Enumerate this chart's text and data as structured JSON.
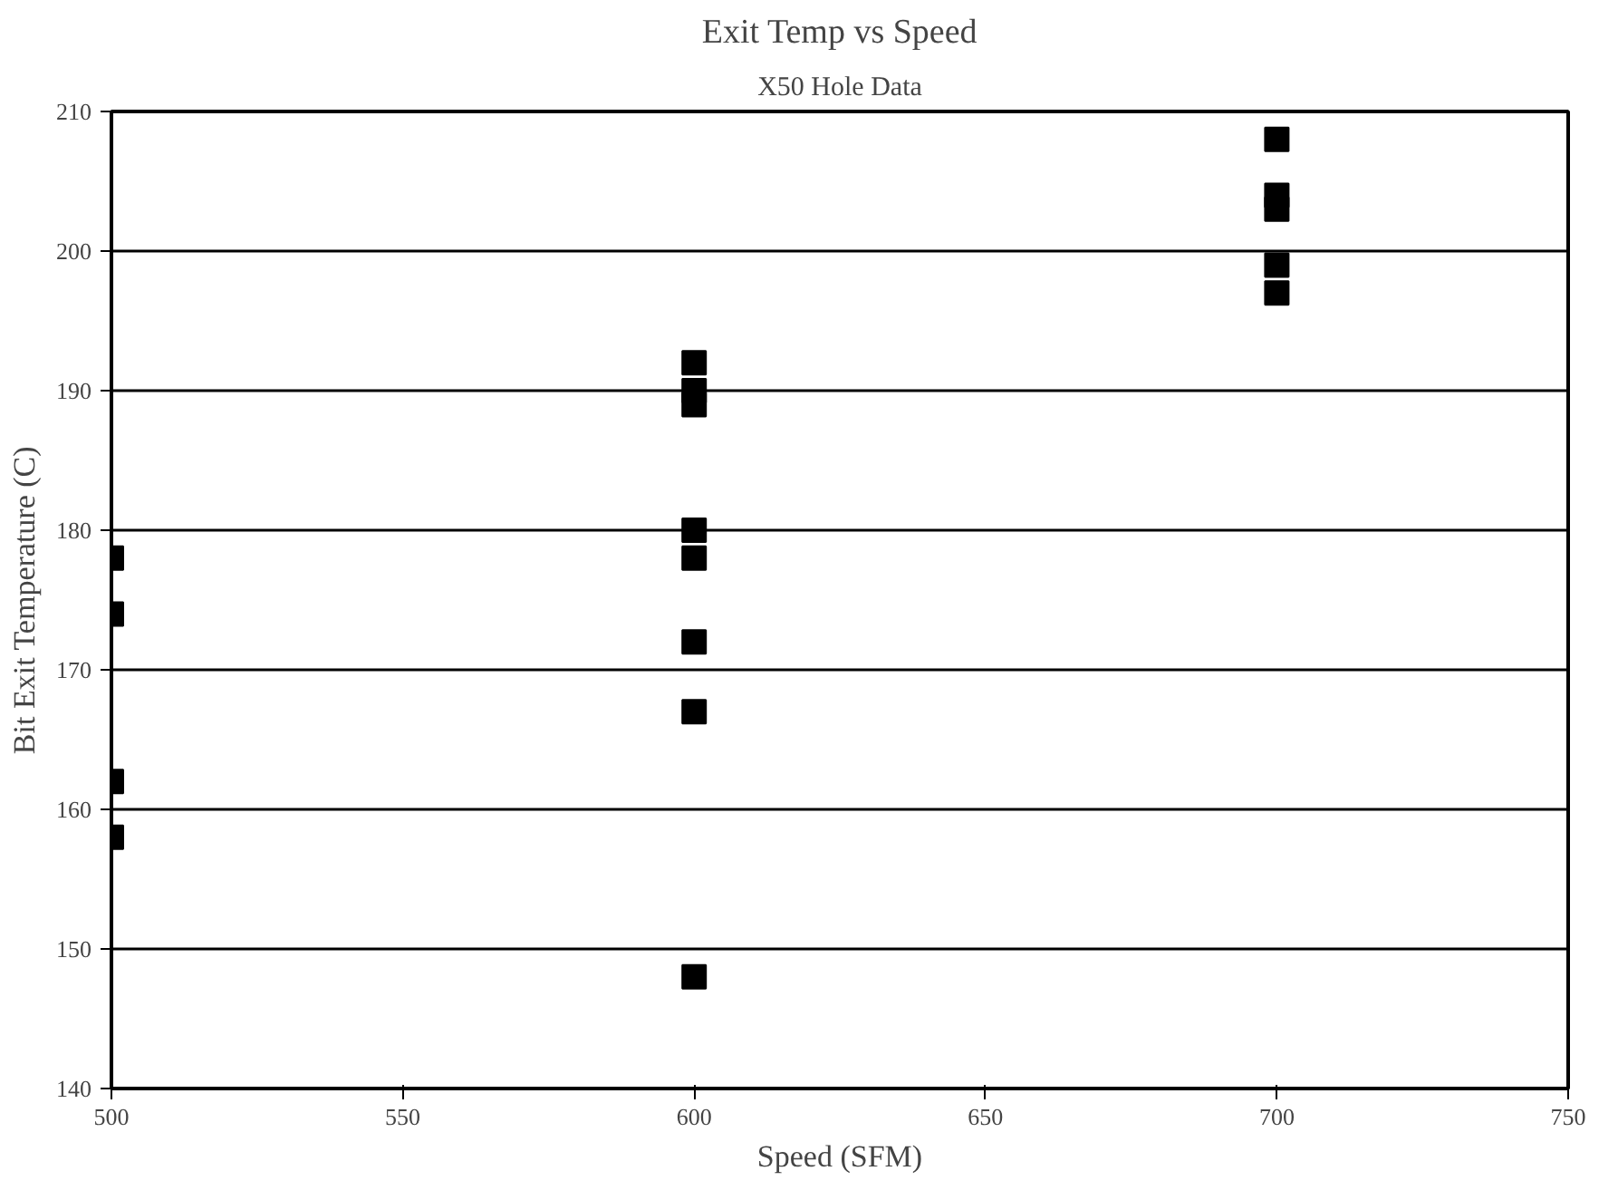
{
  "chart_data": {
    "type": "scatter",
    "title": "Exit Temp vs Speed",
    "subtitle": "X50 Hole Data",
    "xlabel": "Speed (SFM)",
    "ylabel": "Bit Exit Temperature (C)",
    "x": [
      500,
      500,
      500,
      500,
      600,
      600,
      600,
      600,
      600,
      600,
      600,
      600,
      700,
      700,
      700,
      700,
      700
    ],
    "values": [
      178,
      174,
      162,
      158,
      192,
      190,
      189,
      180,
      178,
      172,
      167,
      148,
      208,
      204,
      203,
      199,
      197
    ],
    "color": "#000000",
    "marker": "square",
    "xlim": [
      500,
      750
    ],
    "xticks": [
      500,
      550,
      600,
      650,
      700,
      750
    ],
    "ylim": [
      140,
      210
    ],
    "yticks": [
      140,
      150,
      160,
      170,
      180,
      190,
      200,
      210
    ],
    "grid": "y"
  }
}
